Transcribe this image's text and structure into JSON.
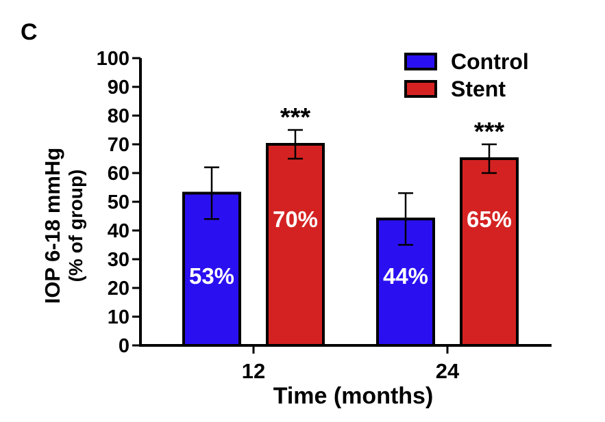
{
  "panel_label": "C",
  "chart_data": {
    "type": "bar",
    "xlabel": "Time (months)",
    "ylabel_line1": "IOP 6-18 mmHg",
    "ylabel_line2": "(% of group)",
    "ylim": [
      0,
      100
    ],
    "yticks": [
      0,
      10,
      20,
      30,
      40,
      50,
      60,
      70,
      80,
      90,
      100
    ],
    "categories": [
      "12",
      "24"
    ],
    "legend_position": "top-right",
    "series": [
      {
        "name": "Control",
        "color": "#2a10f0",
        "values": [
          53,
          44
        ],
        "error": [
          9,
          9
        ],
        "data_labels": [
          "53%",
          "44%"
        ],
        "annotations": [
          "",
          ""
        ]
      },
      {
        "name": "Stent",
        "color": "#d42222",
        "values": [
          70,
          65
        ],
        "error": [
          5,
          5
        ],
        "data_labels": [
          "70%",
          "65%"
        ],
        "annotations": [
          "***",
          "***"
        ]
      }
    ]
  }
}
